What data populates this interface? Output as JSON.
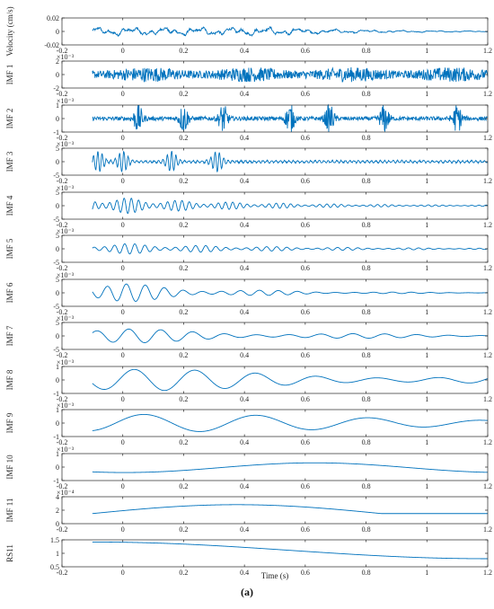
{
  "figure": {
    "caption": "(a)",
    "xlabel": "Time (s)"
  },
  "chart_data": {
    "type": "line",
    "series_color": "#0072BD",
    "axis_color": "#262626",
    "x_range": [
      -0.2,
      1.2
    ],
    "data_x_range": [
      -0.1,
      1.2
    ],
    "x_ticks": [
      -0.2,
      0,
      0.2,
      0.4,
      0.6,
      0.8,
      1,
      1.2
    ],
    "x_tick_labels": [
      "-0.2",
      "0",
      "0.2",
      "0.4",
      "0.6",
      "0.8",
      "1",
      "1.2"
    ],
    "grid": false,
    "panels": [
      {
        "ylabel": "Velocity (cm/s)",
        "exponent": "",
        "ylim": [
          -0.02,
          0.02
        ],
        "yticks": [
          "-0.02",
          "0",
          "0.02"
        ],
        "style": "broadband",
        "amplitude": 0.006,
        "decay": 0.8
      },
      {
        "ylabel": "IMF 1",
        "exponent": "×10⁻³",
        "ylim": [
          -2,
          2
        ],
        "yticks": [
          "-2",
          "0",
          "2"
        ],
        "style": "noise",
        "amplitude": 1.4,
        "decay": 0.1
      },
      {
        "ylabel": "IMF 2",
        "exponent": "×10⁻³",
        "ylim": [
          -1,
          1
        ],
        "yticks": [
          "-1",
          "0",
          "1"
        ],
        "style": "bursts",
        "amplitude": 0.5,
        "decay": 0.1
      },
      {
        "ylabel": "IMF 3",
        "exponent": "×10⁻³",
        "ylim": [
          -5,
          5
        ],
        "yticks": [
          "-5",
          "0",
          "5"
        ],
        "style": "packets",
        "amplitude": 1.6,
        "decay": 0.2
      },
      {
        "ylabel": "IMF 4",
        "exponent": "×10⁻³",
        "ylim": [
          -5,
          5
        ],
        "yticks": [
          "-5",
          "0",
          "5"
        ],
        "style": "oscillation",
        "freq": 42,
        "amplitude": 3.0,
        "decay": 2.2
      },
      {
        "ylabel": "IMF 5",
        "exponent": "×10⁻³",
        "ylim": [
          -5,
          5
        ],
        "yticks": [
          "-5",
          "0",
          "5"
        ],
        "style": "oscillation",
        "freq": 30,
        "amplitude": 2.0,
        "decay": 1.8
      },
      {
        "ylabel": "IMF 6",
        "exponent": "×10⁻³",
        "ylim": [
          -5,
          5
        ],
        "yticks": [
          "-5",
          "0",
          "5"
        ],
        "style": "oscillation",
        "freq": 16,
        "amplitude": 3.6,
        "decay": 2.8
      },
      {
        "ylabel": "IMF 7",
        "exponent": "×10⁻³",
        "ylim": [
          -5,
          5
        ],
        "yticks": [
          "-5",
          "0",
          "5"
        ],
        "style": "oscillation",
        "freq": 9.5,
        "amplitude": 2.8,
        "decay": 1.5
      },
      {
        "ylabel": "IMF 8",
        "exponent": "×10⁻³",
        "ylim": [
          -1,
          1
        ],
        "yticks": [
          "-1",
          "0",
          "1"
        ],
        "style": "oscillation",
        "freq": 5,
        "amplitude": 0.85,
        "decay": 0.6
      },
      {
        "ylabel": "IMF 9",
        "exponent": "×10⁻³",
        "ylim": [
          -1,
          1
        ],
        "yticks": [
          "-1",
          "0",
          "1"
        ],
        "style": "oscillation",
        "freq": 2.7,
        "amplitude": 0.7,
        "decay": 0.4
      },
      {
        "ylabel": "IMF 10",
        "exponent": "×10⁻³",
        "ylim": [
          -1,
          1
        ],
        "yticks": [
          "-1",
          "0",
          "1"
        ],
        "style": "slow",
        "freq": 0.8,
        "amplitude": 0.45
      },
      {
        "ylabel": "IMF 11",
        "exponent": "×10⁻⁴",
        "ylim": [
          0,
          4
        ],
        "yticks": [
          "0",
          "2",
          "4"
        ],
        "style": "hump",
        "amplitude": 2.2
      },
      {
        "ylabel": "RS11",
        "exponent": "",
        "ylim": [
          0.5,
          1.5
        ],
        "yticks": [
          "0.5",
          "1",
          "1.5"
        ],
        "style": "trend",
        "start": 1.42,
        "end": 0.8
      }
    ]
  }
}
